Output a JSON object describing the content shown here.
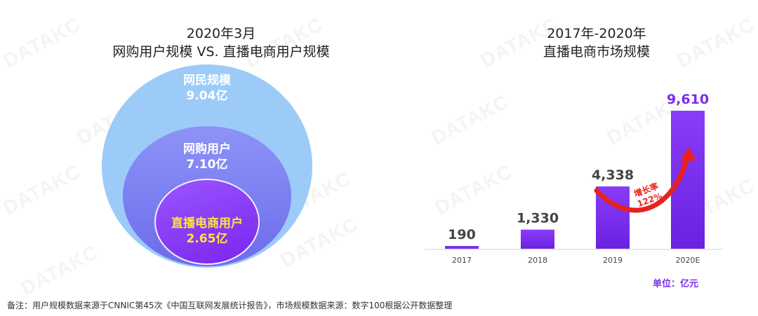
{
  "left": {
    "title_line1": "2020年3月",
    "title_line2": "网购用户规模 VS. 直播电商用户规模",
    "circles": [
      {
        "label": "网民规模",
        "value": "9.04亿",
        "color": "#9ccbf8"
      },
      {
        "label": "网购用户",
        "value": "7.10亿",
        "color": "#7b7ef1"
      },
      {
        "label": "直播电商用户",
        "value": "2.65亿",
        "color": "#8a3cf7",
        "label_color": "#ffe53b"
      }
    ]
  },
  "right": {
    "title_line1": "2017年-2020年",
    "title_line2": "直播电商市场规模",
    "unit": "单位：亿元"
  },
  "chart_data": {
    "type": "bar",
    "title": "2017年-2020年 直播电商市场规模",
    "categories": [
      "2017",
      "2018",
      "2019",
      "2020E"
    ],
    "values": [
      190,
      1330,
      4338,
      9610
    ],
    "value_labels": [
      "190",
      "1,330",
      "4,338",
      "9,610"
    ],
    "ylim": [
      0,
      9610
    ],
    "bar_color": "#7b2cf0",
    "annotation": {
      "text_line1": "增长率",
      "text_line2": "122%",
      "from": "2019",
      "to": "2020E",
      "color": "#e8211b"
    }
  },
  "footnote": "备注：用户规模数据来源于CNNIC第45次《中国互联网发展统计报告》，市场规模数据来源：数字100根据公开数据整理",
  "watermark": "DATAKC"
}
